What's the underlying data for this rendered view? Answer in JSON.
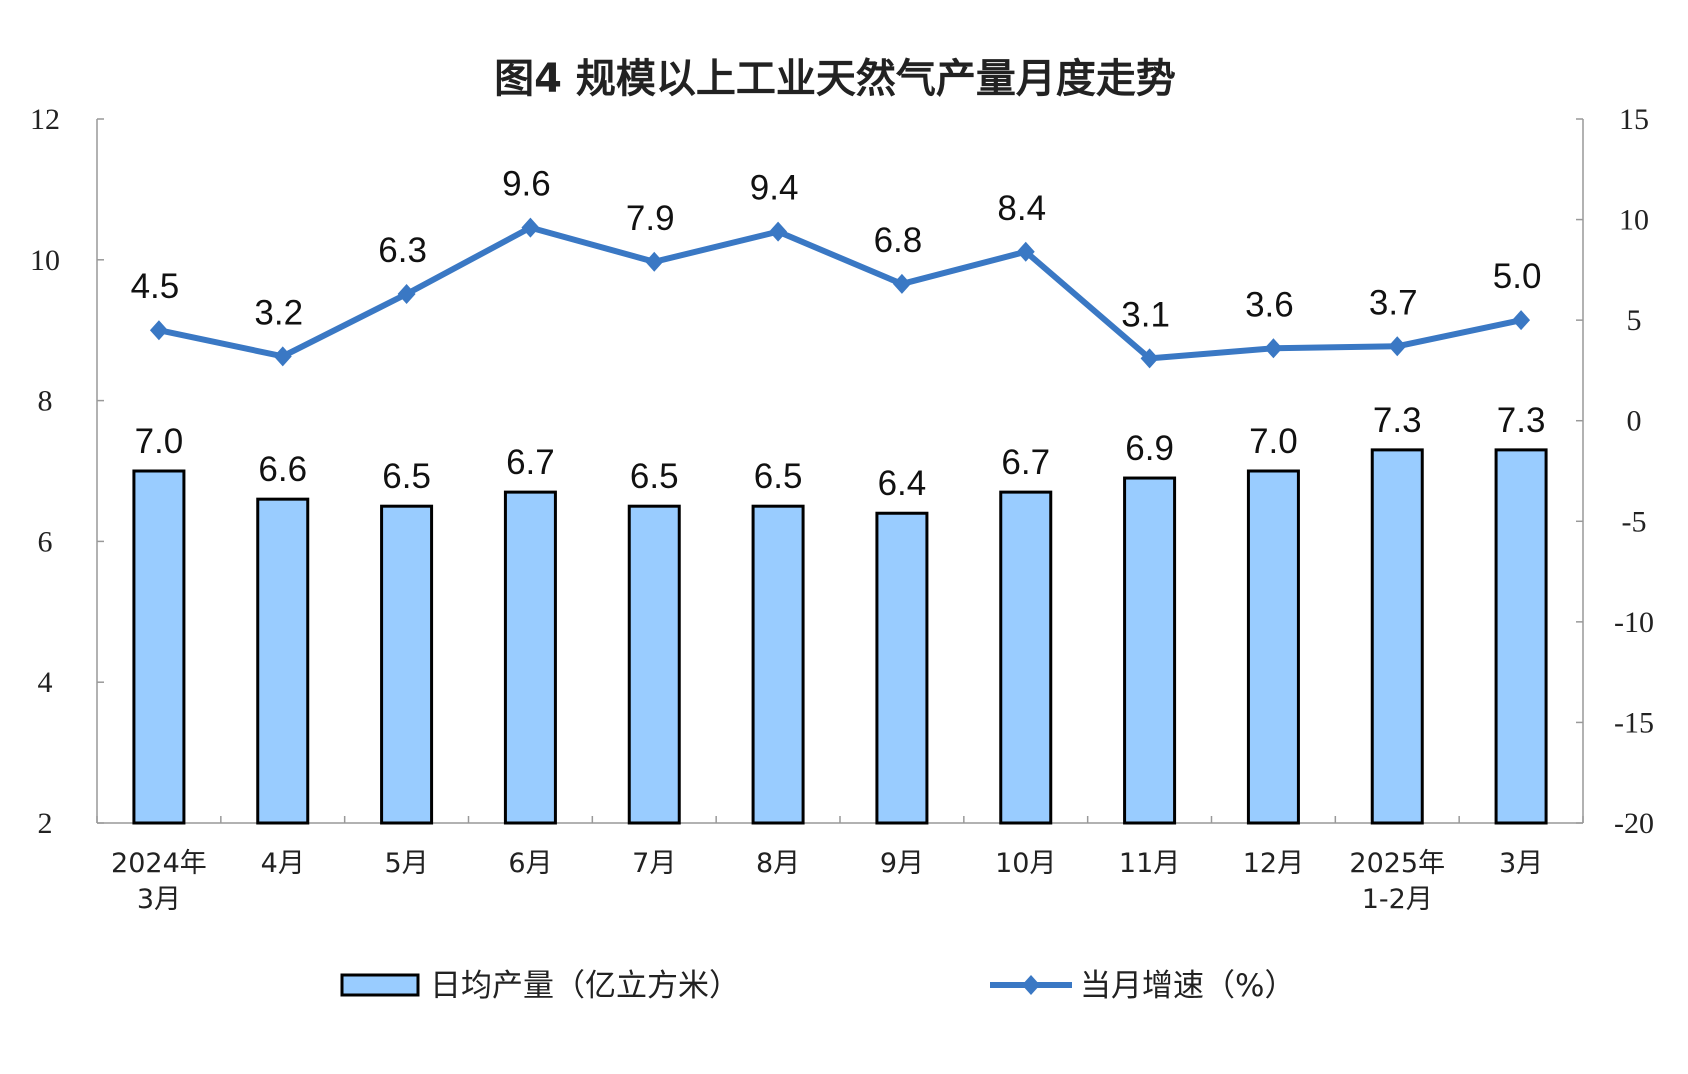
{
  "chart_data": {
    "type": "bar+line",
    "title": "图4  规模以上工业天然气产量月度走势",
    "categories": [
      [
        "2024年",
        "3月"
      ],
      [
        "4月"
      ],
      [
        "5月"
      ],
      [
        "6月"
      ],
      [
        "7月"
      ],
      [
        "8月"
      ],
      [
        "9月"
      ],
      [
        "10月"
      ],
      [
        "11月"
      ],
      [
        "12月"
      ],
      [
        "2025年",
        "1-2月"
      ],
      [
        "3月"
      ]
    ],
    "y_left": {
      "range": [
        2,
        12
      ],
      "ticks": [
        2,
        4,
        6,
        8,
        10,
        12
      ]
    },
    "y_right": {
      "range": [
        -20,
        15
      ],
      "ticks": [
        -20,
        -15,
        -10,
        -5,
        0,
        5,
        10,
        15
      ]
    },
    "grid": false,
    "legend_placement": "bottom",
    "series": [
      {
        "name": "日均产量（亿立方米）",
        "type": "bar",
        "axis": "left",
        "color": "#99CCFF",
        "values": [
          7.0,
          6.6,
          6.5,
          6.7,
          6.5,
          6.5,
          6.4,
          6.7,
          6.9,
          7.0,
          7.3,
          7.3
        ]
      },
      {
        "name": "当月增速（%）",
        "type": "line",
        "axis": "right",
        "color": "#3A78C4",
        "marker": "diamond",
        "values": [
          4.5,
          3.2,
          6.3,
          9.6,
          7.9,
          9.4,
          6.8,
          8.4,
          3.1,
          3.6,
          3.7,
          5.0
        ]
      }
    ]
  }
}
